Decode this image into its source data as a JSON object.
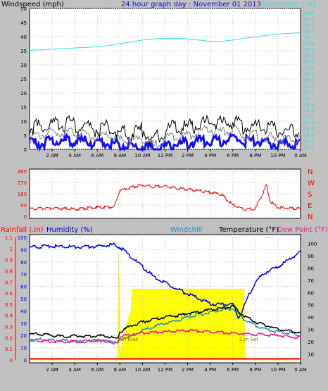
{
  "header": {
    "left_label": "Windspeed (mph)",
    "title": "24 hour graph day : November 01 2013",
    "right_label": "Barometer (.in)"
  },
  "colors": {
    "wind_gust": "#000000",
    "wind_avg": "#1010ff",
    "wind_dir": "#ff0000",
    "barometer": "#30e0e0",
    "temperature": "#000000",
    "humidity": "#0000ff",
    "windchill": "#1e90c8",
    "dew_point": "#ff1493",
    "rainfall": "#ff0000",
    "solar": "#ffff00"
  },
  "chart_data": [
    {
      "type": "line",
      "name": "wind-and-barometer",
      "x_ticks": [
        "2 AM",
        "4 AM",
        "6 AM",
        "8 AM",
        "10 AM",
        "12 PM",
        "2 PM",
        "4 PM",
        "6 PM",
        "8 PM",
        "10 PM",
        "0 AM"
      ],
      "x_hours": [
        0,
        1,
        2,
        3,
        4,
        5,
        6,
        7,
        8,
        9,
        10,
        11,
        12,
        13,
        14,
        15,
        16,
        17,
        18,
        19,
        20,
        21,
        22,
        23,
        24
      ],
      "xlim": [
        0,
        24
      ],
      "y_left": {
        "label": "Windspeed (mph)",
        "ticks": [
          0,
          5,
          10,
          15,
          20,
          25,
          30,
          35,
          40,
          45,
          50
        ],
        "ylim": [
          0,
          50
        ]
      },
      "y_right": {
        "label": "Barometer (.in)",
        "ticks": [
          "28.2",
          "28.3",
          "28.4",
          "28.5",
          "28.6",
          "28.7",
          "28.8",
          "28.9",
          "29",
          "29.1",
          "29.2",
          "29.3",
          "29.4",
          "29.5",
          "29.6",
          "29.7",
          "29.8",
          "29.9",
          "30",
          "30.1",
          "30.2",
          "30.3",
          "30.4"
        ],
        "ylim": [
          28.2,
          30.4
        ]
      },
      "series": [
        {
          "values": [
            4,
            5,
            6,
            6,
            6,
            5,
            4,
            5,
            3,
            3,
            4,
            1,
            4,
            5,
            5,
            6,
            7,
            6,
            7,
            5,
            5,
            4,
            4,
            3,
            4
          ]
        },
        {
          "values": [
            2,
            2,
            3,
            3,
            3,
            3,
            2,
            2,
            2,
            1,
            1,
            0,
            1,
            2,
            2,
            3,
            3,
            3,
            4,
            3,
            3,
            2,
            2,
            2,
            2
          ]
        },
        {
          "values": [
            8,
            8,
            9,
            9,
            9,
            8,
            7,
            8,
            6,
            6,
            7,
            3,
            7,
            8,
            8,
            9,
            10,
            9,
            10,
            8,
            8,
            7,
            7,
            6,
            7
          ]
        },
        {
          "values": [
            29.78,
            29.79,
            29.8,
            29.81,
            29.82,
            29.83,
            29.84,
            29.86,
            29.89,
            29.92,
            29.95,
            29.97,
            29.98,
            29.98,
            29.97,
            29.95,
            29.93,
            29.93,
            29.95,
            29.98,
            30.0,
            30.03,
            30.05,
            30.06,
            30.07
          ]
        }
      ]
    },
    {
      "type": "line",
      "name": "wind-direction",
      "x_ticks": [],
      "xlim": [
        0,
        24
      ],
      "y_left": {
        "ticks": [
          0,
          90,
          180,
          270,
          360
        ],
        "ylim": [
          0,
          360
        ]
      },
      "y_right": {
        "ticks": [
          "N",
          "E",
          "S",
          "W",
          "N"
        ]
      },
      "series": [
        {
          "values": [
            [
              0,
              60
            ],
            [
              2,
              65
            ],
            [
              4,
              58
            ],
            [
              6,
              70
            ],
            [
              7.5,
              75
            ],
            [
              8,
              210
            ],
            [
              9,
              230
            ],
            [
              10,
              250
            ],
            [
              11,
              235
            ],
            [
              12,
              240
            ],
            [
              13,
              225
            ],
            [
              14,
              215
            ],
            [
              15,
              205
            ],
            [
              16,
              190
            ],
            [
              17,
              175
            ],
            [
              18,
              90
            ],
            [
              19,
              55
            ],
            [
              20,
              60
            ],
            [
              21,
              250
            ],
            [
              21.3,
              120
            ],
            [
              22,
              70
            ],
            [
              23,
              65
            ],
            [
              24,
              60
            ]
          ]
        }
      ]
    },
    {
      "type": "line",
      "name": "temperature-humidity",
      "x_ticks": [
        "2 AM",
        "4 AM",
        "6 AM",
        "8 AM",
        "10 AM",
        "12 PM",
        "2 PM",
        "4 PM",
        "6 PM",
        "8 PM",
        "10 PM",
        "0 AM"
      ],
      "xlim": [
        0,
        24
      ],
      "legend": [
        "Rainfall (.in)",
        "Humidity (%)",
        "Windchill",
        "Temperature (°F)",
        "Dew Point (°F)"
      ],
      "y_left_outer": {
        "label": "Rainfall (.in)",
        "ticks": [
          "0",
          "0.1",
          "0.2",
          "0.3",
          "0.4",
          "0.5",
          "0.6",
          "0.7",
          "0.8",
          "0.9",
          "1",
          "1.1"
        ],
        "ylim": [
          0,
          1.1
        ]
      },
      "y_left_inner": {
        "label": "Humidity (%)",
        "ticks": [
          0,
          10,
          20,
          30,
          40,
          50,
          60,
          70,
          80,
          90,
          100
        ],
        "ylim": [
          0,
          100
        ]
      },
      "y_right": {
        "label": "Temperature (°F)",
        "ticks": [
          10,
          20,
          30,
          40,
          50,
          60,
          70,
          80,
          90,
          100
        ],
        "ylim": [
          5,
          105
        ]
      },
      "annotations": [
        "Sun Rise",
        "Sun Set"
      ],
      "series": [
        {
          "name": "Temperature (°F)",
          "values": [
            [
              0,
              26
            ],
            [
              1,
              26
            ],
            [
              2,
              25
            ],
            [
              3,
              24
            ],
            [
              4,
              25
            ],
            [
              5,
              24
            ],
            [
              6,
              25
            ],
            [
              7,
              24
            ],
            [
              7.8,
              22
            ],
            [
              8,
              28
            ],
            [
              9,
              33
            ],
            [
              10,
              36
            ],
            [
              11,
              38
            ],
            [
              12,
              40
            ],
            [
              13,
              41
            ],
            [
              14,
              43
            ],
            [
              15,
              44
            ],
            [
              16,
              46
            ],
            [
              17,
              47
            ],
            [
              18,
              49
            ],
            [
              19,
              41
            ],
            [
              20,
              36
            ],
            [
              21,
              33
            ],
            [
              22,
              30
            ],
            [
              23,
              29
            ],
            [
              24,
              27
            ]
          ]
        },
        {
          "name": "Windchill",
          "values": [
            [
              0,
              21
            ],
            [
              1,
              22
            ],
            [
              2,
              21
            ],
            [
              3,
              21
            ],
            [
              4,
              20
            ],
            [
              5,
              20
            ],
            [
              6,
              21
            ],
            [
              7,
              20
            ],
            [
              7.8,
              18
            ],
            [
              8,
              22
            ],
            [
              9,
              25
            ],
            [
              10,
              29
            ],
            [
              11,
              32
            ],
            [
              12,
              35
            ],
            [
              13,
              37
            ],
            [
              14,
              40
            ],
            [
              15,
              42
            ],
            [
              16,
              44
            ],
            [
              17,
              46
            ],
            [
              18,
              47
            ],
            [
              19,
              38
            ],
            [
              20,
              33
            ],
            [
              21,
              30
            ],
            [
              22,
              28
            ],
            [
              23,
              27
            ],
            [
              24,
              25
            ]
          ]
        },
        {
          "name": "Humidity (%)",
          "values": [
            [
              0,
              92
            ],
            [
              2,
              93
            ],
            [
              4,
              92
            ],
            [
              6,
              93
            ],
            [
              7.5,
              94
            ],
            [
              8,
              92
            ],
            [
              9,
              84
            ],
            [
              10,
              76
            ],
            [
              11,
              68
            ],
            [
              12,
              63
            ],
            [
              13,
              58
            ],
            [
              14,
              54
            ],
            [
              15,
              50
            ],
            [
              16,
              46
            ],
            [
              17,
              45
            ],
            [
              18,
              46
            ],
            [
              18.5,
              34
            ],
            [
              19,
              44
            ],
            [
              20,
              64
            ],
            [
              21,
              72
            ],
            [
              22,
              76
            ],
            [
              23,
              82
            ],
            [
              24,
              88
            ]
          ]
        },
        {
          "name": "Dew Point (°F)",
          "values": [
            [
              0,
              21
            ],
            [
              2,
              20
            ],
            [
              4,
              20
            ],
            [
              6,
              21
            ],
            [
              7.8,
              19
            ],
            [
              8,
              24
            ],
            [
              10,
              27
            ],
            [
              12,
              28
            ],
            [
              14,
              29
            ],
            [
              16,
              28
            ],
            [
              18,
              27
            ],
            [
              20,
              26
            ],
            [
              22,
              25
            ],
            [
              24,
              23
            ]
          ]
        },
        {
          "name": "Rainfall (.in)",
          "values": [
            [
              0,
              0.01
            ],
            [
              24,
              0.01
            ]
          ]
        },
        {
          "name": "Solar",
          "values": [
            [
              0,
              0
            ],
            [
              7.8,
              0
            ],
            [
              7.9,
              88
            ],
            [
              8.0,
              0
            ],
            [
              8.2,
              15
            ],
            [
              8.6,
              30
            ],
            [
              9.0,
              40
            ],
            [
              9.1,
              58
            ],
            [
              12,
              58
            ],
            [
              15,
              58
            ],
            [
              18,
              58
            ],
            [
              19.0,
              58
            ],
            [
              19.1,
              0
            ],
            [
              24,
              0
            ]
          ]
        }
      ]
    }
  ]
}
